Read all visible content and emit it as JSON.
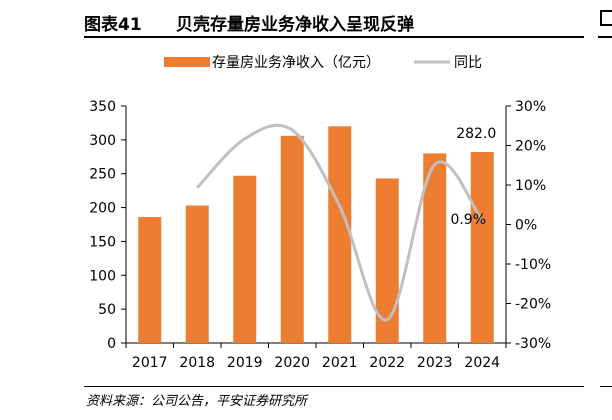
{
  "figure": {
    "number": "图表41",
    "title": "贝壳存量房业务净收入呈现反弹",
    "source": "资料来源：公司公告，平安证券研究所"
  },
  "chart_data": {
    "type": "bar",
    "categories": [
      "2017",
      "2018",
      "2019",
      "2020",
      "2021",
      "2022",
      "2023",
      "2024"
    ],
    "series": [
      {
        "name": "存量房业务净收入（亿元）",
        "type": "bar",
        "axis": "left",
        "color": "#ED7D31",
        "values": [
          186,
          203,
          247,
          306,
          320,
          243,
          280,
          282.0
        ]
      },
      {
        "name": "同比",
        "type": "line",
        "axis": "right",
        "color": "#C0C0C0",
        "values": [
          null,
          9.3,
          21.7,
          23.9,
          4.6,
          -24.1,
          15.2,
          0.9
        ]
      }
    ],
    "y_left": {
      "ylim": [
        0,
        350
      ],
      "ticks": [
        "0",
        "50",
        "100",
        "150",
        "200",
        "250",
        "300",
        "350"
      ]
    },
    "y_right": {
      "ylim": [
        -30,
        30
      ],
      "ticks": [
        "-30%",
        "-20%",
        "-10%",
        "0%",
        "10%",
        "20%",
        "30%"
      ]
    },
    "annotations": [
      {
        "text": "282.0",
        "category": "2024",
        "series": "存量房业务净收入（亿元）"
      },
      {
        "text": "0.9%",
        "category": "2024",
        "series": "同比"
      }
    ],
    "legend_position": "top",
    "grid": false
  }
}
